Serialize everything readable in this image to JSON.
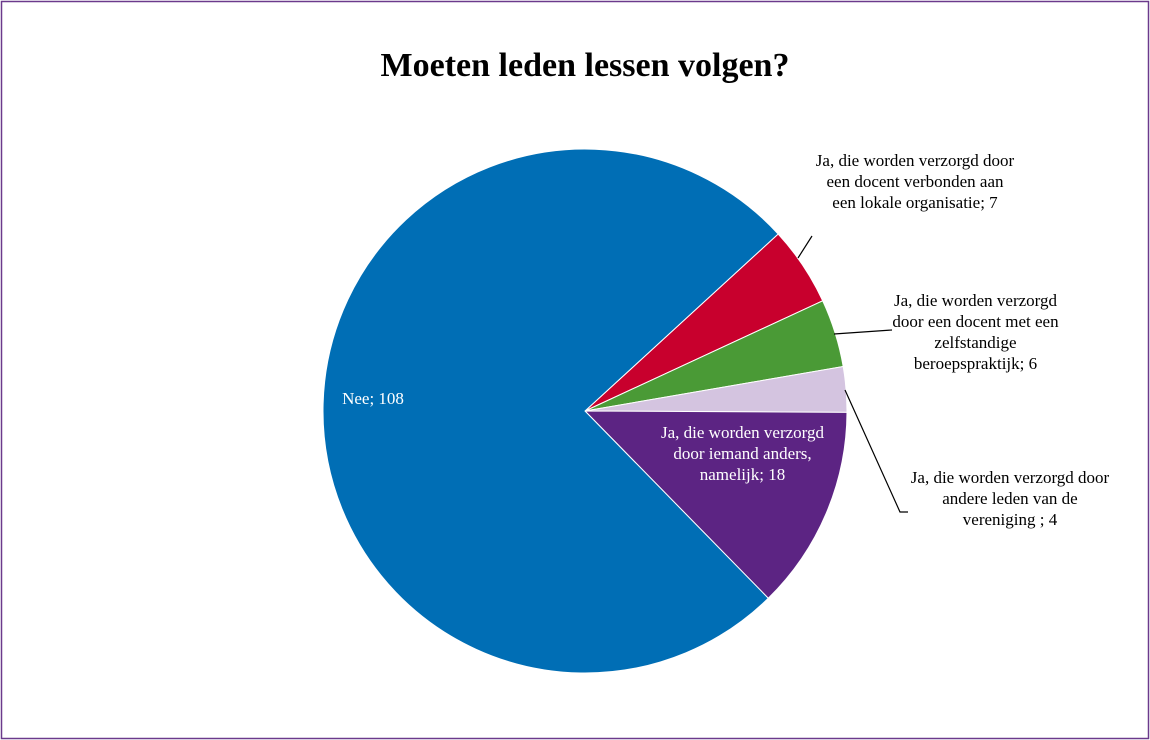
{
  "chart_data": {
    "type": "pie",
    "title": "Moeten leden lessen volgen?",
    "values": [
      7,
      6,
      4,
      18,
      108
    ],
    "value_labels": [
      "Ja, die worden verzorgd door een docent verbonden aan een lokale organisatie; 7",
      "Ja, die worden verzorgd door een docent met een zelfstandige beroepspraktijk; 6",
      "Ja, die worden verzorgd door andere leden van de vereniging ; 4",
      "Ja, die worden verzorgd door iemand anders, namelijk; 18",
      "Nee; 108"
    ],
    "colors": [
      "#c8002d",
      "#4a9a36",
      "#d4c4e0",
      "#5c2483",
      "#006eb5"
    ]
  }
}
